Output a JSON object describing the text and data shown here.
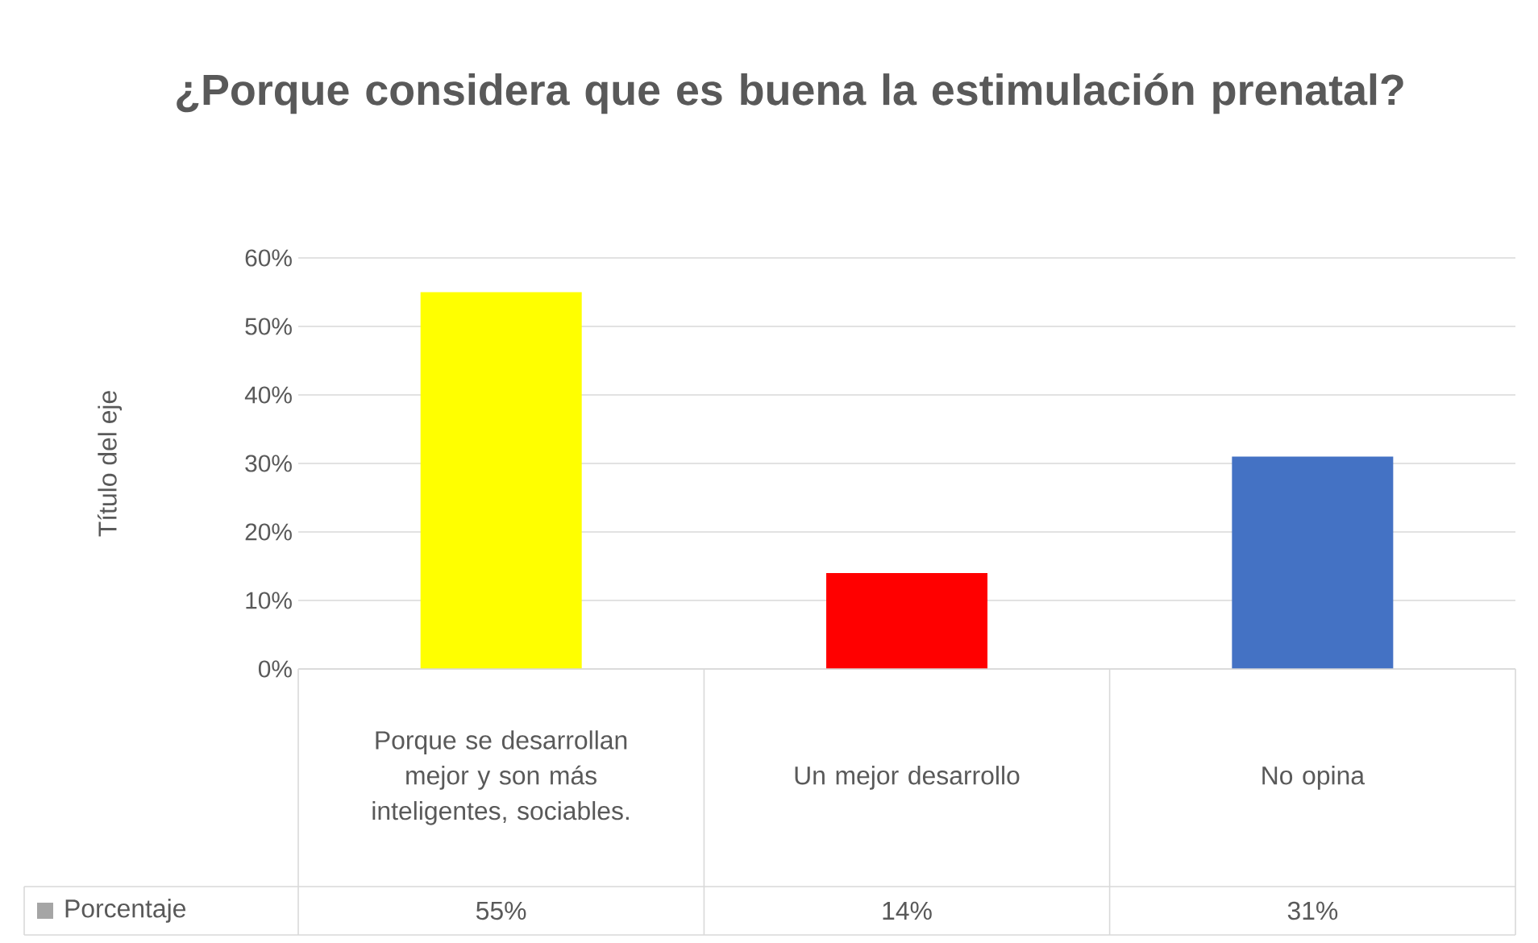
{
  "chart_data": {
    "type": "bar",
    "title": "¿Porque considera que es buena la estimulación prenatal?",
    "ylabel": "Título del eje",
    "categories": [
      "Porque se desarrollan mejor y son más inteligentes, sociables.",
      "Un mejor desarrollo",
      "No opina"
    ],
    "series": [
      {
        "name": "Porcentaje",
        "colors": [
          "#ffff00",
          "#ff0000",
          "#4472c4"
        ],
        "values": [
          55,
          14,
          31
        ],
        "value_labels": [
          "55%",
          "14%",
          "31%"
        ]
      }
    ],
    "ylim": [
      0,
      60
    ],
    "yticks": [
      {
        "value": 0,
        "label": "0%"
      },
      {
        "value": 10,
        "label": "10%"
      },
      {
        "value": 20,
        "label": "20%"
      },
      {
        "value": 30,
        "label": "30%"
      },
      {
        "value": 40,
        "label": "40%"
      },
      {
        "value": 50,
        "label": "50%"
      },
      {
        "value": 60,
        "label": "60%"
      }
    ],
    "grid": "y",
    "legend": "bottom"
  }
}
